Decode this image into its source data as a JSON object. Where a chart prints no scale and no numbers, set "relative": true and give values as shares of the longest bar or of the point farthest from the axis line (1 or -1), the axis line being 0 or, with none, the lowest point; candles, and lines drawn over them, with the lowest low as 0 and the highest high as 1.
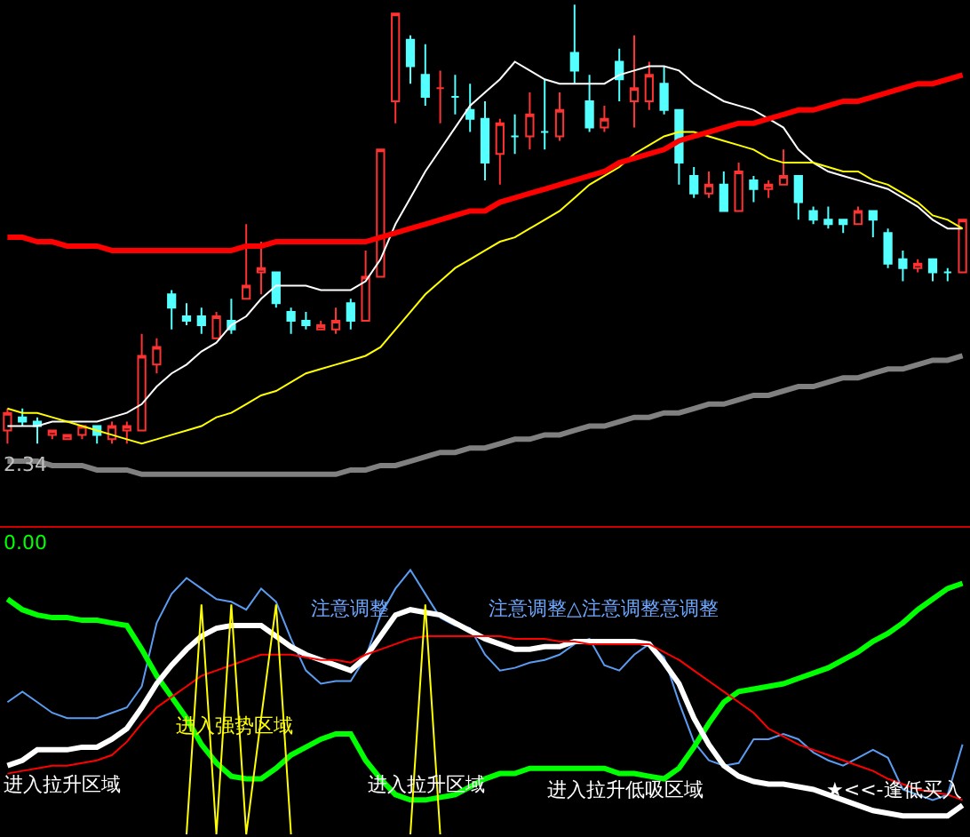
{
  "chart_data": [
    {
      "type": "candlestick",
      "relative": true,
      "categories": [
        null,
        null,
        null,
        null,
        null,
        null,
        null,
        null,
        null,
        null,
        null,
        null,
        null,
        null,
        null,
        null,
        null,
        null,
        null,
        null,
        null,
        null,
        null,
        null,
        null,
        null,
        null,
        null,
        null,
        null,
        null,
        null,
        null,
        null,
        null,
        null,
        null,
        null,
        null,
        null,
        null,
        null,
        null,
        null,
        null,
        null,
        null,
        null,
        null,
        null,
        null,
        null,
        null,
        null,
        null,
        null,
        null,
        null,
        null,
        null,
        null,
        null,
        null,
        null,
        null
      ],
      "ohlc": [
        [
          0.03,
          0.08,
          0,
          0.07
        ],
        [
          0.06,
          0.08,
          0.04,
          0.05
        ],
        [
          0.05,
          0.06,
          0,
          0.04
        ],
        [
          0.02,
          0.03,
          0.01,
          0.03
        ],
        [
          0.01,
          0.02,
          0.01,
          0.02
        ],
        [
          0.02,
          0.04,
          0.01,
          0.04
        ],
        [
          0.04,
          0.04,
          0,
          0.02
        ],
        [
          0.01,
          0.05,
          0,
          0.04
        ],
        [
          0.03,
          0.05,
          0,
          0.04
        ],
        [
          0.03,
          0.25,
          0.03,
          0.2
        ],
        [
          0.18,
          0.24,
          0.16,
          0.22
        ],
        [
          0.34,
          0.35,
          0.26,
          0.31
        ],
        [
          0.29,
          0.32,
          0.27,
          0.28
        ],
        [
          0.29,
          0.31,
          0.25,
          0.27
        ],
        [
          0.24,
          0.3,
          0.24,
          0.29
        ],
        [
          0.28,
          0.33,
          0.25,
          0.26
        ],
        [
          0.33,
          0.5,
          0.33,
          0.36
        ],
        [
          0.39,
          0.46,
          0.34,
          0.4
        ],
        [
          0.39,
          0.39,
          0.31,
          0.32
        ],
        [
          0.3,
          0.31,
          0.25,
          0.28
        ],
        [
          0.28,
          0.3,
          0.26,
          0.27
        ],
        [
          0.26,
          0.28,
          0.26,
          0.27
        ],
        [
          0.26,
          0.31,
          0.25,
          0.28
        ],
        [
          0.32,
          0.33,
          0.26,
          0.28
        ],
        [
          0.28,
          0.44,
          0.28,
          0.38
        ],
        [
          0.38,
          0.67,
          0.38,
          0.67
        ],
        [
          0.78,
          0.98,
          0.73,
          0.98
        ],
        [
          0.92,
          0.93,
          0.82,
          0.86
        ],
        [
          0.84,
          0.91,
          0.77,
          0.79
        ],
        [
          0.81,
          0.85,
          0.73,
          0.81
        ],
        [
          0.79,
          0.84,
          0.75,
          0.79
        ],
        [
          0.76,
          0.82,
          0.71,
          0.74
        ],
        [
          0.74,
          0.78,
          0.6,
          0.64
        ],
        [
          0.66,
          0.74,
          0.59,
          0.73
        ],
        [
          0.7,
          0.75,
          0.66,
          0.7
        ],
        [
          0.7,
          0.8,
          0.67,
          0.75
        ],
        [
          0.71,
          0.83,
          0.67,
          0.71
        ],
        [
          0.7,
          0.8,
          0.69,
          0.76
        ],
        [
          0.89,
          1,
          0.82,
          0.85
        ],
        [
          0.78,
          0.84,
          0.71,
          0.72
        ],
        [
          0.72,
          0.77,
          0.71,
          0.74
        ],
        [
          0.87,
          0.9,
          0.78,
          0.83
        ],
        [
          0.78,
          0.93,
          0.72,
          0.81
        ],
        [
          0.78,
          0.87,
          0.76,
          0.84
        ],
        [
          0.82,
          0.86,
          0.75,
          0.76
        ],
        [
          0.76,
          0.76,
          0.59,
          0.64
        ],
        [
          0.61,
          0.63,
          0.56,
          0.57
        ],
        [
          0.57,
          0.62,
          0.56,
          0.59
        ],
        [
          0.59,
          0.62,
          0.53,
          0.53
        ],
        [
          0.53,
          0.64,
          0.53,
          0.62
        ],
        [
          0.6,
          0.61,
          0.55,
          0.58
        ],
        [
          0.58,
          0.6,
          0.56,
          0.59
        ],
        [
          0.59,
          0.67,
          0.59,
          0.61
        ],
        [
          0.61,
          0.61,
          0.51,
          0.55
        ],
        [
          0.53,
          0.54,
          0.5,
          0.51
        ],
        [
          0.51,
          0.54,
          0.49,
          0.5
        ],
        [
          0.51,
          0.51,
          0.48,
          0.5
        ],
        [
          0.5,
          0.54,
          0.5,
          0.53
        ],
        [
          0.53,
          0.53,
          0.47,
          0.51
        ],
        [
          0.48,
          0.49,
          0.4,
          0.41
        ],
        [
          0.42,
          0.44,
          0.37,
          0.4
        ],
        [
          0.4,
          0.42,
          0.39,
          0.41
        ],
        [
          0.42,
          0.42,
          0.37,
          0.39
        ],
        [
          0.39,
          0.4,
          0.37,
          0.39
        ],
        [
          0.39,
          0.51,
          0.39,
          0.51
        ]
      ],
      "series": [
        {
          "type": "line",
          "color": "#ffffff",
          "values": [
            0.04,
            0.04,
            0.04,
            0.05,
            0.05,
            0.05,
            0.05,
            0.06,
            0.07,
            0.09,
            0.13,
            0.16,
            0.18,
            0.21,
            0.23,
            0.27,
            0.29,
            0.33,
            0.36,
            0.36,
            0.36,
            0.35,
            0.35,
            0.35,
            0.37,
            0.42,
            0.5,
            0.56,
            0.62,
            0.67,
            0.72,
            0.77,
            0.8,
            0.83,
            0.87,
            0.85,
            0.83,
            0.82,
            0.82,
            0.82,
            0.82,
            0.84,
            0.85,
            0.86,
            0.86,
            0.85,
            0.82,
            0.8,
            0.78,
            0.77,
            0.76,
            0.74,
            0.72,
            0.67,
            0.64,
            0.62,
            0.61,
            0.6,
            0.59,
            0.58,
            0.56,
            0.54,
            0.51,
            0.49,
            0.49
          ]
        },
        {
          "type": "line",
          "color": "#ffff00",
          "values": [
            0.08,
            0.07,
            0.07,
            0.06,
            0.05,
            0.04,
            0.03,
            0.02,
            0.01,
            0,
            0.01,
            0.02,
            0.03,
            0.04,
            0.06,
            0.07,
            0.09,
            0.11,
            0.12,
            0.14,
            0.16,
            0.17,
            0.18,
            0.19,
            0.2,
            0.22,
            0.26,
            0.3,
            0.34,
            0.37,
            0.4,
            0.42,
            0.44,
            0.46,
            0.47,
            0.49,
            0.51,
            0.53,
            0.56,
            0.59,
            0.61,
            0.63,
            0.66,
            0.68,
            0.7,
            0.71,
            0.71,
            0.7,
            0.69,
            0.68,
            0.67,
            0.65,
            0.64,
            0.64,
            0.64,
            0.63,
            0.62,
            0.62,
            0.6,
            0.59,
            0.57,
            0.55,
            0.52,
            0.51,
            0.49
          ]
        },
        {
          "type": "line",
          "color": "#ff0000",
          "values": [
            0.47,
            0.47,
            0.46,
            0.46,
            0.45,
            0.45,
            0.45,
            0.44,
            0.44,
            0.44,
            0.44,
            0.44,
            0.44,
            0.44,
            0.44,
            0.44,
            0.45,
            0.45,
            0.46,
            0.46,
            0.46,
            0.46,
            0.46,
            0.46,
            0.46,
            0.47,
            0.48,
            0.49,
            0.5,
            0.51,
            0.52,
            0.53,
            0.53,
            0.55,
            0.56,
            0.57,
            0.58,
            0.59,
            0.6,
            0.61,
            0.62,
            0.64,
            0.65,
            0.66,
            0.67,
            0.69,
            0.7,
            0.71,
            0.72,
            0.73,
            0.73,
            0.74,
            0.75,
            0.76,
            0.76,
            0.77,
            0.78,
            0.78,
            0.79,
            0.8,
            0.81,
            0.82,
            0.82,
            0.83,
            0.84
          ]
        },
        {
          "type": "line",
          "color": "#808080",
          "values": [
            -0.04,
            -0.04,
            -0.04,
            -0.05,
            -0.05,
            -0.05,
            -0.06,
            -0.06,
            -0.06,
            -0.07,
            -0.07,
            -0.07,
            -0.07,
            -0.07,
            -0.07,
            -0.07,
            -0.07,
            -0.07,
            -0.07,
            -0.07,
            -0.07,
            -0.07,
            -0.07,
            -0.06,
            -0.06,
            -0.05,
            -0.05,
            -0.04,
            -0.03,
            -0.02,
            -0.02,
            -0.01,
            -0.01,
            0,
            0.01,
            0.01,
            0.02,
            0.02,
            0.03,
            0.04,
            0.04,
            0.05,
            0.06,
            0.06,
            0.07,
            0.07,
            0.08,
            0.09,
            0.09,
            0.1,
            0.11,
            0.11,
            0.12,
            0.13,
            0.13,
            0.14,
            0.15,
            0.15,
            0.16,
            0.17,
            0.17,
            0.18,
            0.19,
            0.19,
            0.2
          ]
        }
      ],
      "annotations": [
        "2.34"
      ]
    },
    {
      "type": "line",
      "relative": true,
      "categories": [
        null,
        null,
        null,
        null,
        null,
        null,
        null,
        null,
        null,
        null,
        null,
        null,
        null,
        null,
        null,
        null,
        null,
        null,
        null,
        null,
        null,
        null,
        null,
        null,
        null,
        null,
        null,
        null,
        null,
        null,
        null,
        null,
        null,
        null,
        null,
        null,
        null,
        null,
        null,
        null,
        null,
        null,
        null,
        null,
        null,
        null,
        null,
        null,
        null,
        null,
        null,
        null,
        null,
        null,
        null,
        null,
        null,
        null,
        null,
        null,
        null,
        null,
        null,
        null,
        null
      ],
      "series": [
        {
          "color": "#5b9bf0",
          "values": [
            0.5,
            0.54,
            0.5,
            0.46,
            0.44,
            0.44,
            0.44,
            0.46,
            0.48,
            0.56,
            0.8,
            0.91,
            0.97,
            0.93,
            0.89,
            0.88,
            0.85,
            0.93,
            0.88,
            0.74,
            0.62,
            0.57,
            0.58,
            0.58,
            0.67,
            0.83,
            0.93,
            1.0,
            0.91,
            0.82,
            0.79,
            0.78,
            0.68,
            0.62,
            0.63,
            0.65,
            0.66,
            0.68,
            0.72,
            0.74,
            0.64,
            0.62,
            0.68,
            0.72,
            0.67,
            0.5,
            0.35,
            0.28,
            0.26,
            0.27,
            0.36,
            0.36,
            0.38,
            0.36,
            0.31,
            0.28,
            0.26,
            0.29,
            0.32,
            0.29,
            0.17,
            0.15,
            0.13,
            0.15,
            0.34
          ]
        },
        {
          "color": "#00ff00",
          "values": [
            0.89,
            0.85,
            0.83,
            0.82,
            0.82,
            0.81,
            0.81,
            0.8,
            0.79,
            0.7,
            0.6,
            0.52,
            0.44,
            0.34,
            0.27,
            0.22,
            0.21,
            0.21,
            0.25,
            0.3,
            0.33,
            0.36,
            0.38,
            0.38,
            0.28,
            0.21,
            0.15,
            0.13,
            0.13,
            0.14,
            0.15,
            0.18,
            0.21,
            0.23,
            0.23,
            0.25,
            0.25,
            0.25,
            0.25,
            0.25,
            0.25,
            0.23,
            0.23,
            0.22,
            0.21,
            0.25,
            0.33,
            0.42,
            0.5,
            0.54,
            0.55,
            0.56,
            0.57,
            0.59,
            0.61,
            0.63,
            0.66,
            0.69,
            0.73,
            0.76,
            0.8,
            0.85,
            0.89,
            0.93,
            0.95
          ]
        },
        {
          "color": "#ffffff",
          "values": [
            0.26,
            0.28,
            0.32,
            0.32,
            0.32,
            0.33,
            0.33,
            0.36,
            0.4,
            0.48,
            0.57,
            0.64,
            0.7,
            0.75,
            0.78,
            0.79,
            0.79,
            0.79,
            0.75,
            0.71,
            0.68,
            0.66,
            0.64,
            0.62,
            0.67,
            0.75,
            0.83,
            0.85,
            0.84,
            0.83,
            0.8,
            0.77,
            0.74,
            0.72,
            0.7,
            0.7,
            0.71,
            0.71,
            0.73,
            0.73,
            0.73,
            0.73,
            0.73,
            0.72,
            0.65,
            0.57,
            0.44,
            0.34,
            0.26,
            0.22,
            0.2,
            0.19,
            0.19,
            0.18,
            0.17,
            0.15,
            0.13,
            0.11,
            0.09,
            0.08,
            0.07,
            0.07,
            0.07,
            0.07,
            0.11
          ]
        },
        {
          "color": "#ff0000",
          "values": [
            0.23,
            0.24,
            0.25,
            0.26,
            0.26,
            0.27,
            0.28,
            0.3,
            0.35,
            0.42,
            0.48,
            0.52,
            0.56,
            0.6,
            0.62,
            0.64,
            0.66,
            0.68,
            0.68,
            0.68,
            0.67,
            0.66,
            0.66,
            0.65,
            0.68,
            0.7,
            0.72,
            0.74,
            0.75,
            0.75,
            0.75,
            0.75,
            0.75,
            0.75,
            0.74,
            0.74,
            0.74,
            0.73,
            0.73,
            0.72,
            0.72,
            0.72,
            0.72,
            0.72,
            0.69,
            0.66,
            0.62,
            0.58,
            0.54,
            0.5,
            0.46,
            0.4,
            0.37,
            0.34,
            0.32,
            0.3,
            0.28,
            0.26,
            0.24,
            0.21,
            0.19,
            0.17,
            0.16,
            0.15,
            0.13
          ]
        },
        {
          "color": "#ffff00",
          "values": [
            null,
            null,
            null,
            null,
            null,
            null,
            null,
            null,
            null,
            null,
            null,
            null,
            0,
            0.87,
            0,
            0.87,
            0,
            0.44,
            0.87,
            0,
            null,
            null,
            null,
            null,
            null,
            null,
            null,
            0,
            0.87,
            0,
            null,
            null,
            null,
            null,
            null,
            null,
            null,
            null,
            null,
            null,
            null,
            null,
            null,
            null,
            null,
            null,
            null,
            null,
            null,
            null,
            null,
            null,
            null,
            null,
            null,
            null,
            null,
            null,
            null,
            null,
            null,
            null,
            null,
            null,
            null
          ]
        }
      ],
      "annotations": [
        "0.00",
        "进入拉升区域",
        "进入强势区域",
        "注意调整",
        "进入拉升区域",
        "注意调整△注意调整意调整",
        "进入拉升低吸区域",
        "★<<-逢低买入"
      ]
    }
  ]
}
